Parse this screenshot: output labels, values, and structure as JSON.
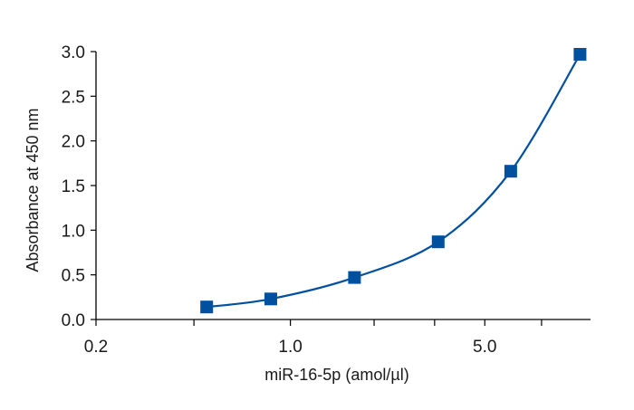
{
  "chart_data": {
    "type": "scatter",
    "title": "",
    "xlabel": "miR-16-5p (amol/µl)",
    "ylabel": "Absorbance at 450 nm",
    "x_scale": "log",
    "xlim": [
      0.2,
      12
    ],
    "ylim": [
      0.0,
      3.0
    ],
    "x_major_ticks": [
      0.2,
      1.0,
      5.0
    ],
    "x_major_tick_labels": [
      "0.2",
      "1.0",
      "5.0"
    ],
    "x_minor_ticks": [
      0.45,
      2.0,
      3.3,
      8.0
    ],
    "y_ticks": [
      0.0,
      0.5,
      1.0,
      1.5,
      2.0,
      2.5,
      3.0
    ],
    "y_tick_labels": [
      "0.0",
      "0.5",
      "1.0",
      "1.5",
      "2.0",
      "2.5",
      "3.0"
    ],
    "grid": false,
    "legend": "none",
    "series": [
      {
        "marker": "square",
        "color": "#0050a0",
        "x": [
          0.5,
          0.85,
          1.7,
          3.4,
          6.2,
          11.0
        ],
        "y": [
          0.14,
          0.23,
          0.47,
          0.87,
          1.66,
          2.97
        ],
        "fit_curve": true
      }
    ]
  }
}
